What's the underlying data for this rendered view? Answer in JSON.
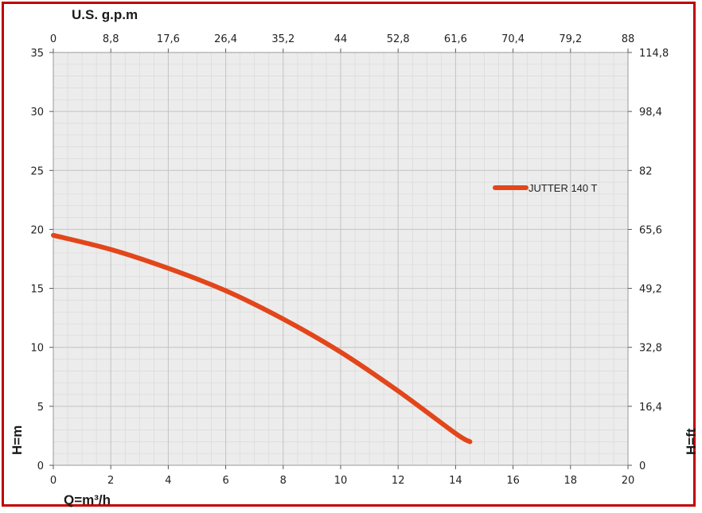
{
  "colors": {
    "frame": "#c00000",
    "curve": "#e2461a",
    "plot_bg": "#ececec",
    "grid_major": "#c4c4c4",
    "grid_minor": "#dadada"
  },
  "chart_data": {
    "type": "line",
    "title": "",
    "xlabel": "Q=m³/h",
    "ylabel": "H=m",
    "x2label": "U.S. g.p.m",
    "y2label": "H=ft",
    "xlim": [
      0,
      20
    ],
    "ylim": [
      0,
      35
    ],
    "x_ticks": [
      "0",
      "2",
      "4",
      "6",
      "8",
      "10",
      "12",
      "14",
      "16",
      "18",
      "20"
    ],
    "y_ticks": [
      "0",
      "5",
      "10",
      "15",
      "20",
      "25",
      "30",
      "35"
    ],
    "x2_ticks": [
      "0",
      "8,8",
      "17,6",
      "26,4",
      "35,2",
      "44",
      "52,8",
      "61,6",
      "70,4",
      "79,2",
      "88"
    ],
    "y2_ticks": [
      "0",
      "16,4",
      "32,8",
      "49,2",
      "65,6",
      "82",
      "98,4",
      "114,8"
    ],
    "grid": true,
    "legend_position": "right",
    "series": [
      {
        "name": "JUTTER 140 T",
        "x": [
          0,
          2,
          4,
          6,
          8,
          10,
          12,
          14,
          14.5
        ],
        "y": [
          19.5,
          18.3,
          16.7,
          14.8,
          12.4,
          9.6,
          6.3,
          2.7,
          2.0
        ]
      }
    ]
  }
}
